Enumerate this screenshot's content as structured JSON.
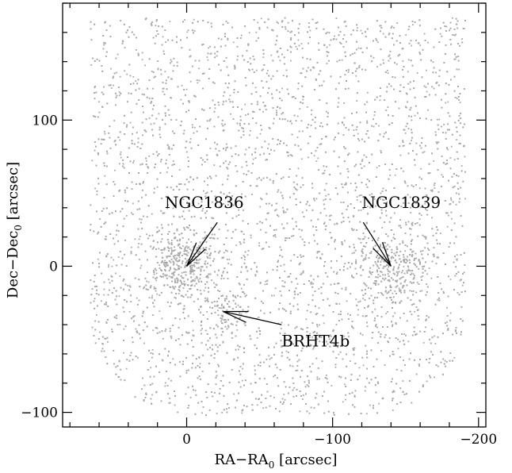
{
  "chart_data": {
    "type": "scatter",
    "title": "",
    "xlabel": "RA−RA",
    "xlabel_sub": "0",
    "xlabel_unit": " [arcsec]",
    "ylabel": "Dec−Dec",
    "ylabel_sub": "0",
    "ylabel_unit": " [arcsec]",
    "xlim": [
      85,
      -205
    ],
    "ylim": [
      -110,
      180
    ],
    "x_ticks": [
      {
        "value": 0,
        "label": "0"
      },
      {
        "value": -100,
        "label": "−100"
      },
      {
        "value": -200,
        "label": "−200"
      }
    ],
    "y_ticks": [
      {
        "value": 100,
        "label": "100"
      },
      {
        "value": 0,
        "label": "0"
      },
      {
        "value": -100,
        "label": "−100"
      }
    ],
    "x_minor_step": 20,
    "y_minor_step": 20,
    "grid": false,
    "legend": "none",
    "point_color": "#a9a9a9",
    "point_count": 9000,
    "field": {
      "ra_range": [
        66,
        -191
      ],
      "dec_range": [
        -102,
        170
      ],
      "corner_radius": 70
    },
    "clusters": [
      {
        "name": "NGC1836",
        "ra": 0,
        "dec": 0,
        "fraction": 0.08,
        "core_radius": 12
      },
      {
        "name": "NGC1839",
        "ra": -140,
        "dec": 0,
        "fraction": 0.06,
        "core_radius": 12
      },
      {
        "name": "BRHT4b",
        "ra": -25,
        "dec": -32,
        "fraction": 0.015,
        "core_radius": 9
      }
    ],
    "annotations": [
      {
        "text": "NGC1836",
        "text_ra": 15,
        "text_dec": 40,
        "tip_ra": 0,
        "tip_dec": 0,
        "tail_ra": -21,
        "tail_dec": 30
      },
      {
        "text": "NGC1839",
        "text_ra": -120,
        "text_dec": 40,
        "tip_ra": -140,
        "tip_dec": 0,
        "tail_ra": -121,
        "tail_dec": 30
      },
      {
        "text": "BRHT4b",
        "text_ra": -65,
        "text_dec": -55,
        "tip_ra": -25,
        "tip_dec": -31,
        "tail_ra": -65,
        "tail_dec": -40
      }
    ]
  }
}
